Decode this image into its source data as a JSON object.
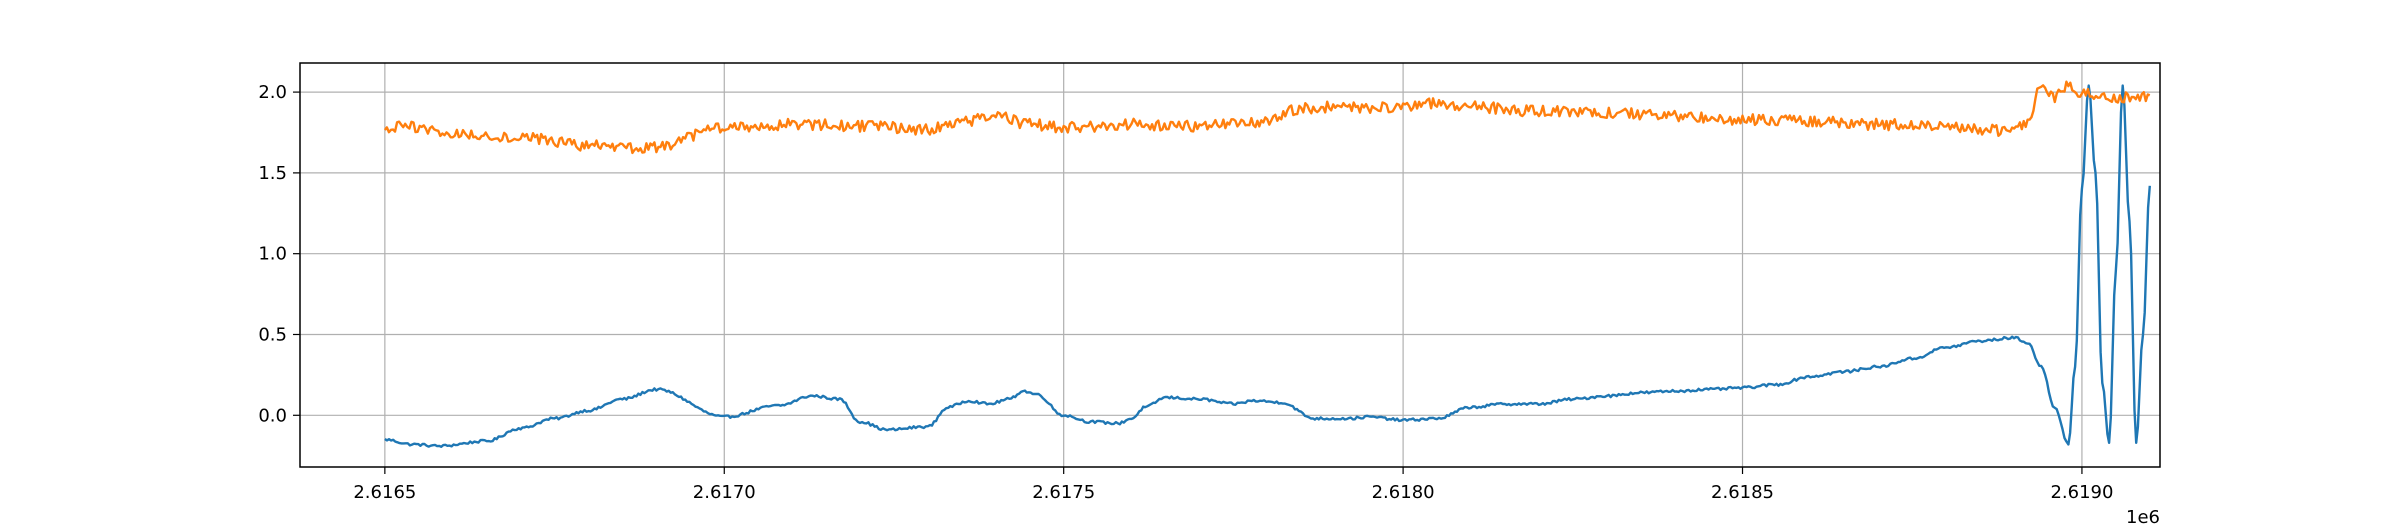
{
  "chart_data": {
    "type": "line",
    "title": "",
    "xlabel": "",
    "ylabel": "",
    "x_offset_label": "1e6",
    "xlim": [
      2616375,
      2619115
    ],
    "ylim": [
      -0.32,
      2.18
    ],
    "grid": true,
    "legend": "none",
    "xticks": [
      2616500,
      2617000,
      2617500,
      2618000,
      2618500,
      2619000
    ],
    "xtick_labels": [
      "2.6165",
      "2.6170",
      "2.6175",
      "2.6180",
      "2.6185",
      "2.6190"
    ],
    "yticks": [
      0.0,
      0.5,
      1.0,
      1.5,
      2.0
    ],
    "ytick_labels": [
      "0.0",
      "0.5",
      "1.0",
      "1.5",
      "2.0"
    ],
    "series": [
      {
        "color": "#1f77b4",
        "noise": 0.008,
        "x": [
          2616500,
          2616540,
          2616580,
          2616650,
          2616700,
          2616750,
          2616800,
          2616850,
          2616900,
          2617000,
          2617080,
          2617130,
          2617170,
          2617200,
          2617240,
          2617300,
          2617330,
          2617360,
          2617390,
          2617420,
          2617440,
          2617460,
          2617500,
          2617540,
          2617580,
          2617600,
          2617620,
          2617650,
          2617700,
          2617750,
          2617780,
          2617820,
          2617870,
          2617920,
          2617950,
          2618000,
          2618050,
          2618100,
          2618150,
          2618200,
          2618250,
          2618300,
          2618350,
          2618400,
          2618450,
          2618500,
          2618550,
          2618600,
          2618650,
          2618700,
          2618750,
          2618800,
          2618850,
          2618900,
          2618920,
          2618940,
          2618960,
          2618980,
          2618990,
          2619000,
          2619010,
          2619020,
          2619030,
          2619040,
          2619050,
          2619060,
          2619070,
          2619080,
          2619090,
          2619100
        ],
        "y": [
          -0.15,
          -0.18,
          -0.19,
          -0.16,
          -0.08,
          -0.02,
          0.03,
          0.1,
          0.16,
          -0.01,
          0.06,
          0.12,
          0.1,
          -0.04,
          -0.09,
          -0.07,
          0.05,
          0.09,
          0.07,
          0.1,
          0.15,
          0.13,
          0.0,
          -0.04,
          -0.05,
          -0.02,
          0.05,
          0.11,
          0.1,
          0.07,
          0.09,
          0.08,
          -0.02,
          -0.02,
          -0.01,
          -0.03,
          -0.02,
          0.05,
          0.07,
          0.07,
          0.1,
          0.12,
          0.14,
          0.15,
          0.16,
          0.17,
          0.19,
          0.24,
          0.27,
          0.3,
          0.35,
          0.42,
          0.46,
          0.48,
          0.45,
          0.3,
          0.05,
          -0.18,
          0.3,
          1.4,
          2.04,
          1.5,
          0.2,
          -0.17,
          0.9,
          2.04,
          1.2,
          -0.17,
          0.5,
          1.42
        ]
      },
      {
        "color": "#ff7f0e",
        "noise": 0.035,
        "x": [
          2616500,
          2616530,
          2616600,
          2616700,
          2616800,
          2616850,
          2616900,
          2617000,
          2617100,
          2617200,
          2617300,
          2617350,
          2617400,
          2617450,
          2617500,
          2617600,
          2617700,
          2617750,
          2617800,
          2617850,
          2617900,
          2618000,
          2618050,
          2618100,
          2618200,
          2618300,
          2618400,
          2618500,
          2618600,
          2618700,
          2618800,
          2618850,
          2618880,
          2618900,
          2618920,
          2618940,
          2618960,
          2618980,
          2619000,
          2619050,
          2619100
        ],
        "y": [
          1.76,
          1.79,
          1.74,
          1.72,
          1.67,
          1.65,
          1.66,
          1.78,
          1.8,
          1.79,
          1.77,
          1.82,
          1.85,
          1.8,
          1.78,
          1.8,
          1.79,
          1.8,
          1.82,
          1.9,
          1.91,
          1.9,
          1.93,
          1.91,
          1.88,
          1.87,
          1.85,
          1.83,
          1.82,
          1.8,
          1.78,
          1.77,
          1.76,
          1.77,
          1.8,
          2.05,
          1.97,
          2.05,
          1.99,
          1.97,
          1.98
        ]
      }
    ]
  }
}
